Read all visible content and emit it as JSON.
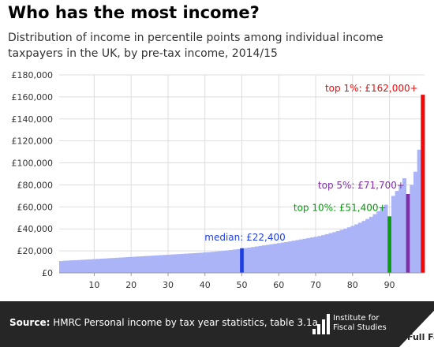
{
  "chart_data": {
    "type": "bar",
    "title": "Who has the most income?",
    "subtitle": "Distribution of income in percentile points among individual income taxpayers in the UK, by pre-tax income, 2014/15",
    "xlabel": "",
    "ylabel": "",
    "xlim": [
      1,
      99
    ],
    "ylim": [
      0,
      180000
    ],
    "grid": true,
    "legend": "none",
    "x": [
      1,
      2,
      3,
      4,
      5,
      6,
      7,
      8,
      9,
      10,
      11,
      12,
      13,
      14,
      15,
      16,
      17,
      18,
      19,
      20,
      21,
      22,
      23,
      24,
      25,
      26,
      27,
      28,
      29,
      30,
      31,
      32,
      33,
      34,
      35,
      36,
      37,
      38,
      39,
      40,
      41,
      42,
      43,
      44,
      45,
      46,
      47,
      48,
      49,
      50,
      51,
      52,
      53,
      54,
      55,
      56,
      57,
      58,
      59,
      60,
      61,
      62,
      63,
      64,
      65,
      66,
      67,
      68,
      69,
      70,
      71,
      72,
      73,
      74,
      75,
      76,
      77,
      78,
      79,
      80,
      81,
      82,
      83,
      84,
      85,
      86,
      87,
      88,
      89,
      90,
      91,
      92,
      93,
      94,
      95,
      96,
      97,
      98,
      99
    ],
    "values": [
      10700,
      11000,
      11200,
      11400,
      11500,
      11700,
      11900,
      12100,
      12300,
      12500,
      12700,
      12900,
      13100,
      13300,
      13500,
      13700,
      13900,
      14100,
      14300,
      14500,
      14700,
      14900,
      15100,
      15300,
      15500,
      15700,
      15900,
      16100,
      16300,
      16500,
      16700,
      16900,
      17100,
      17300,
      17500,
      17700,
      17900,
      18100,
      18300,
      18600,
      18800,
      19100,
      19400,
      19700,
      20000,
      20400,
      20800,
      21200,
      21600,
      22400,
      22600,
      23000,
      23500,
      24000,
      24500,
      25000,
      25500,
      26000,
      26500,
      27000,
      27500,
      28000,
      28600,
      29200,
      29800,
      30400,
      31000,
      31600,
      32200,
      32800,
      33500,
      34300,
      35200,
      36100,
      37000,
      38000,
      39100,
      40200,
      41400,
      42700,
      44100,
      45600,
      47200,
      49000,
      51000,
      53400,
      56100,
      59000,
      62000,
      51400,
      70000,
      74500,
      80000,
      86000,
      71700,
      80000,
      92000,
      112000,
      162000
    ],
    "highlights": [
      {
        "x": 50,
        "value": 22400,
        "label": "median: £22,400",
        "color": "#1f3fe0"
      },
      {
        "x": 90,
        "value": 51400,
        "label": "top 10%: £51,400+",
        "color": "#0a9a10"
      },
      {
        "x": 95,
        "value": 71700,
        "label": "top 5%: £71,700+",
        "color": "#7e2fa8"
      },
      {
        "x": 99,
        "value": 162000,
        "label": "top 1%: £162,000+",
        "color": "#ee0a0a"
      }
    ],
    "yticks": [
      0,
      20000,
      40000,
      60000,
      80000,
      100000,
      120000,
      140000,
      160000,
      180000
    ],
    "ytick_labels": [
      "£0",
      "£20,000",
      "£40,000",
      "£60,000",
      "£80,000",
      "£100,000",
      "£120,000",
      "£140,000",
      "£160,000",
      "£180,000"
    ],
    "xticks": [
      10,
      20,
      30,
      40,
      50,
      60,
      70,
      80,
      90
    ],
    "xtick_labels": [
      "10",
      "20",
      "30",
      "40",
      "50",
      "60",
      "70",
      "80",
      "90"
    ],
    "bar_color": "#aab4f7",
    "grid_color": "#dddddd"
  },
  "footer": {
    "source_label": "Source:",
    "source_text": " HMRC Personal income by tax year statistics, table 3.1a",
    "ifs_logo_line1": "Institute for",
    "ifs_logo_line2": "Fiscal Studies",
    "fullfact_logo_text": "Full Fact",
    "background": "#262626"
  }
}
